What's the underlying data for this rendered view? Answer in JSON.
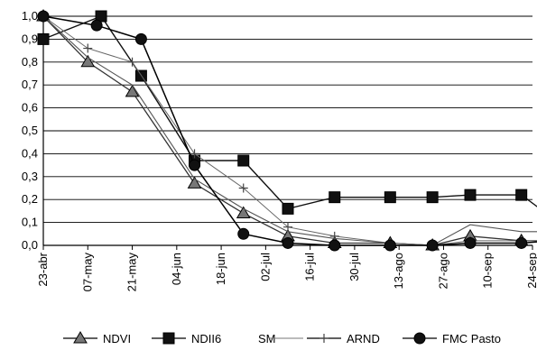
{
  "chart_data": {
    "type": "line",
    "title": "",
    "xlabel": "",
    "ylabel": "",
    "x": [
      "23-abr",
      "07-may",
      "21-may",
      "04-jun",
      "18-jun",
      "02-jul",
      "16-jul",
      "30-jul",
      "13-ago",
      "27-ago",
      "10-sep",
      "24-sep"
    ],
    "ylim": [
      0.0,
      1.0
    ],
    "yticks": [
      "0,0",
      "0,1",
      "0,2",
      "0,3",
      "0,4",
      "0,5",
      "0,6",
      "0,7",
      "0,8",
      "0,9",
      "1,0"
    ],
    "grid": "horizontal",
    "legend": "bottom",
    "series": [
      {
        "name": "NDVI",
        "marker": "triangle",
        "x": [
          0,
          1,
          2,
          3.4,
          4.5,
          5.5,
          6.55,
          7.8,
          8.75,
          9.6,
          10.75,
          12
        ],
        "values": [
          1.0,
          0.8,
          0.67,
          0.27,
          0.14,
          0.04,
          0.01,
          0.01,
          0.0,
          0.04,
          0.02,
          0.02
        ]
      },
      {
        "name": "NDII6",
        "marker": "square",
        "x": [
          0,
          1.3,
          2.2,
          3.4,
          4.5,
          5.5,
          6.55,
          7.8,
          8.75,
          9.6,
          10.75,
          12
        ],
        "values": [
          0.9,
          1.0,
          0.74,
          0.37,
          0.37,
          0.16,
          0.21,
          0.21,
          0.21,
          0.22,
          0.22,
          0.04
        ]
      },
      {
        "name": "SM",
        "marker": "none",
        "x": [
          0,
          1,
          2,
          3.4,
          4.5,
          5.5,
          6.55,
          7.8,
          8.75,
          9.6,
          10.75,
          12
        ],
        "values": [
          1.0,
          0.82,
          0.7,
          0.29,
          0.16,
          0.06,
          0.03,
          0.01,
          0.0,
          0.09,
          0.06,
          0.06
        ]
      },
      {
        "name": "ARND",
        "marker": "plus",
        "x": [
          0,
          1,
          2,
          3.4,
          4.5,
          5.5,
          6.55,
          7.8,
          8.75,
          9.6,
          10.75,
          12
        ],
        "values": [
          1.0,
          0.86,
          0.8,
          0.4,
          0.25,
          0.08,
          0.04,
          0.01,
          0.0,
          0.02,
          0.02,
          0.02
        ]
      },
      {
        "name": "FMC Pasto",
        "marker": "diamond",
        "x": [
          0,
          1.2,
          2.2,
          3.4,
          4.5,
          5.5,
          6.55,
          7.8,
          8.75,
          9.6,
          10.75,
          12
        ],
        "values": [
          1.0,
          0.96,
          0.9,
          0.35,
          0.05,
          0.01,
          0.0,
          0.0,
          0.0,
          0.01,
          0.01,
          0.03
        ]
      }
    ]
  }
}
